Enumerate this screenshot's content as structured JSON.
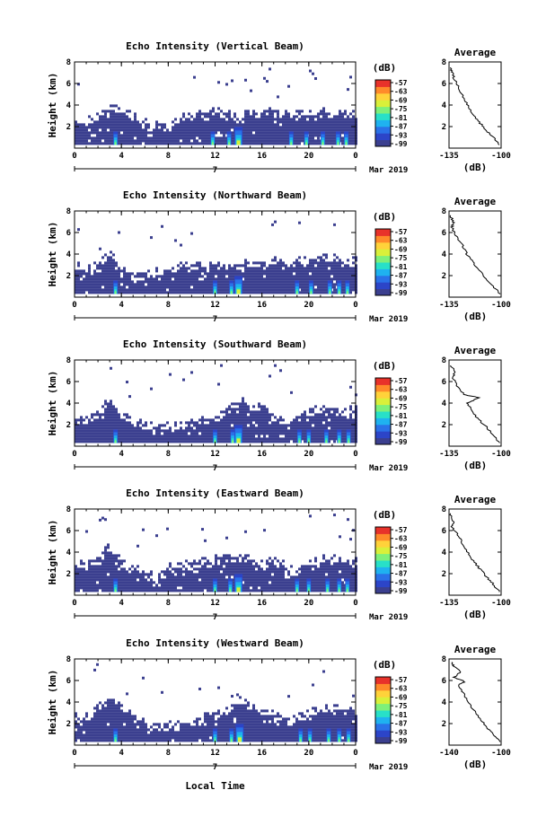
{
  "figure": {
    "xlabel_bottom": "Local Time",
    "date_label": "Mar 2019",
    "day_label": "7",
    "height_label": "Height (km)",
    "colorbar_title": "(dB)",
    "colorbar_ticks": [
      "-57",
      "-63",
      "-69",
      "-75",
      "-81",
      "-87",
      "-93",
      "-99"
    ],
    "colormap": [
      "#3b3f8f",
      "#2c45c8",
      "#2a72e8",
      "#1fb2f0",
      "#28e0c8",
      "#7ef07a",
      "#d9f03a",
      "#ffd23a",
      "#ff8a2a",
      "#e8322a"
    ]
  },
  "chart_data": [
    {
      "type": "heatmap",
      "title": "Echo Intensity (Vertical Beam)",
      "xlabel": "",
      "ylabel": "Height (km)",
      "xlim": [
        0,
        24
      ],
      "ylim": [
        0,
        8
      ],
      "x_ticks": [
        "0",
        "4",
        "8",
        "12",
        "16",
        "20",
        "0"
      ],
      "y_ticks": [
        "2",
        "4",
        "6",
        "8"
      ],
      "colorbar": {
        "label": "(dB)",
        "range": [
          -99,
          -57
        ]
      },
      "cloud_top_km": [
        2.3,
        2.6,
        2.9,
        3.8,
        3.9,
        3.0,
        2.6,
        2.2,
        2.3,
        2.9,
        2.9,
        3.3,
        3.4,
        3.5,
        3.1,
        3.3,
        3.4,
        3.5,
        3.4,
        3.3,
        3.3,
        3.5,
        3.2,
        3.4,
        3.5
      ],
      "bright_hours": [
        3.5,
        11.8,
        13.2,
        14.0,
        18.5,
        19.8,
        21.2,
        22.5,
        23.2
      ],
      "average": {
        "title": "Average",
        "xlabel": "(dB)",
        "x_ticks": [
          "-135",
          "-100"
        ],
        "xlim": [
          -135,
          -100
        ],
        "y_ticks": [
          "2",
          "4",
          "6",
          "8"
        ],
        "ylim": [
          0,
          8
        ],
        "profile": [
          [
            -101,
            0.3
          ],
          [
            -105,
            1.0
          ],
          [
            -110,
            1.6
          ],
          [
            -114,
            2.3
          ],
          [
            -118,
            3.0
          ],
          [
            -122,
            3.8
          ],
          [
            -125,
            4.6
          ],
          [
            -128,
            5.5
          ],
          [
            -131,
            6.3
          ],
          [
            -133,
            7.0
          ],
          [
            -134,
            7.5
          ]
        ]
      }
    },
    {
      "type": "heatmap",
      "title": "Echo Intensity (Northward Beam)",
      "xlabel": "",
      "ylabel": "Height (km)",
      "xlim": [
        0,
        24
      ],
      "ylim": [
        0,
        8
      ],
      "x_ticks": [
        "0",
        "4",
        "8",
        "12",
        "16",
        "20",
        "0"
      ],
      "y_ticks": [
        "2",
        "4",
        "6",
        "8"
      ],
      "colorbar": {
        "label": "(dB)",
        "range": [
          -99,
          -57
        ]
      },
      "cloud_top_km": [
        3.0,
        2.6,
        3.2,
        4.3,
        2.6,
        2.0,
        2.4,
        2.4,
        2.6,
        3.0,
        2.9,
        2.9,
        3.3,
        3.0,
        3.2,
        3.3,
        3.3,
        3.5,
        3.0,
        3.4,
        3.7,
        3.7,
        3.9,
        3.5,
        3.6
      ],
      "bright_hours": [
        3.5,
        12.0,
        13.4,
        14.0,
        19.0,
        20.2,
        21.8,
        22.6,
        23.3
      ],
      "average": {
        "title": "Average",
        "xlabel": "(dB)",
        "x_ticks": [
          "-135",
          "-100"
        ],
        "xlim": [
          -135,
          -100
        ],
        "y_ticks": [
          "2",
          "4",
          "6",
          "8"
        ],
        "ylim": [
          0,
          8
        ],
        "profile": [
          [
            -101,
            0.3
          ],
          [
            -105,
            1.0
          ],
          [
            -110,
            1.7
          ],
          [
            -115,
            2.5
          ],
          [
            -119,
            3.3
          ],
          [
            -123,
            4.0
          ],
          [
            -126,
            4.8
          ],
          [
            -130,
            5.6
          ],
          [
            -133,
            6.5
          ],
          [
            -132,
            7.0
          ],
          [
            -134,
            7.6
          ]
        ]
      }
    },
    {
      "type": "heatmap",
      "title": "Echo Intensity (Southward Beam)",
      "xlabel": "",
      "ylabel": "Height (km)",
      "xlim": [
        0,
        24
      ],
      "ylim": [
        0,
        8
      ],
      "x_ticks": [
        "0",
        "4",
        "8",
        "12",
        "16",
        "20",
        "0"
      ],
      "y_ticks": [
        "2",
        "4",
        "6",
        "8"
      ],
      "colorbar": {
        "label": "(dB)",
        "range": [
          -99,
          -57
        ]
      },
      "cloud_top_km": [
        2.9,
        2.5,
        3.4,
        4.6,
        3.0,
        2.6,
        2.0,
        1.8,
        2.0,
        2.1,
        2.3,
        2.6,
        2.9,
        3.5,
        4.6,
        3.9,
        3.5,
        3.0,
        2.3,
        2.9,
        3.3,
        3.5,
        3.6,
        3.4,
        3.5
      ],
      "bright_hours": [
        3.5,
        12.0,
        13.5,
        14.0,
        19.2,
        20.0,
        21.5,
        22.6,
        23.4
      ],
      "average": {
        "title": "Average",
        "xlabel": "(dB)",
        "x_ticks": [
          "-135",
          "-100"
        ],
        "xlim": [
          -135,
          -100
        ],
        "y_ticks": [
          "2",
          "4",
          "6",
          "8"
        ],
        "ylim": [
          0,
          8
        ],
        "profile": [
          [
            -101,
            0.3
          ],
          [
            -105,
            1.0
          ],
          [
            -110,
            1.8
          ],
          [
            -116,
            2.6
          ],
          [
            -120,
            3.4
          ],
          [
            -123,
            4.0
          ],
          [
            -115,
            4.5
          ],
          [
            -125,
            4.8
          ],
          [
            -130,
            5.6
          ],
          [
            -132,
            6.3
          ],
          [
            -131,
            6.9
          ],
          [
            -134,
            7.5
          ]
        ]
      }
    },
    {
      "type": "heatmap",
      "title": "Echo Intensity (Eastward Beam)",
      "xlabel": "",
      "ylabel": "Height (km)",
      "xlim": [
        0,
        24
      ],
      "ylim": [
        0,
        8
      ],
      "x_ticks": [
        "0",
        "4",
        "8",
        "12",
        "16",
        "20",
        "0"
      ],
      "y_ticks": [
        "2",
        "4",
        "6",
        "8"
      ],
      "colorbar": {
        "label": "(dB)",
        "range": [
          -99,
          -57
        ]
      },
      "cloud_top_km": [
        2.9,
        2.8,
        3.6,
        4.9,
        3.2,
        2.6,
        2.0,
        1.8,
        2.6,
        2.9,
        3.0,
        3.1,
        3.5,
        3.9,
        3.6,
        3.3,
        3.2,
        3.6,
        2.6,
        2.7,
        3.0,
        3.3,
        3.6,
        3.2,
        3.4
      ],
      "bright_hours": [
        3.5,
        12.0,
        13.3,
        14.0,
        19.0,
        20.0,
        21.6,
        22.6,
        23.3
      ],
      "average": {
        "title": "Average",
        "xlabel": "(dB)",
        "x_ticks": [
          "-135",
          "-100"
        ],
        "xlim": [
          -135,
          -100
        ],
        "y_ticks": [
          "2",
          "4",
          "6",
          "8"
        ],
        "ylim": [
          0,
          8
        ],
        "profile": [
          [
            -101,
            0.3
          ],
          [
            -105,
            1.0
          ],
          [
            -110,
            1.7
          ],
          [
            -114,
            2.4
          ],
          [
            -119,
            3.2
          ],
          [
            -122,
            3.9
          ],
          [
            -126,
            4.8
          ],
          [
            -129,
            5.6
          ],
          [
            -133,
            6.3
          ],
          [
            -132,
            6.8
          ],
          [
            -134,
            7.6
          ]
        ]
      }
    },
    {
      "type": "heatmap",
      "title": "Echo Intensity (Westward Beam)",
      "xlabel": "Local Time",
      "ylabel": "Height (km)",
      "xlim": [
        0,
        24
      ],
      "ylim": [
        0,
        8
      ],
      "x_ticks": [
        "0",
        "4",
        "8",
        "12",
        "16",
        "20",
        "0"
      ],
      "y_ticks": [
        "2",
        "4",
        "6",
        "8"
      ],
      "colorbar": {
        "label": "(dB)",
        "range": [
          -99,
          -57
        ]
      },
      "cloud_top_km": [
        2.7,
        2.7,
        3.6,
        4.6,
        3.6,
        2.6,
        2.0,
        1.9,
        2.1,
        2.3,
        2.4,
        2.7,
        2.9,
        3.6,
        4.6,
        3.8,
        3.3,
        2.9,
        2.5,
        2.7,
        3.2,
        3.6,
        3.6,
        3.3,
        3.5
      ],
      "bright_hours": [
        3.5,
        12.0,
        13.4,
        14.1,
        19.3,
        20.1,
        21.7,
        22.6,
        23.4
      ],
      "average": {
        "title": "Average",
        "xlabel": "(dB)",
        "x_ticks": [
          "-140",
          "-100"
        ],
        "xlim": [
          -140,
          -100
        ],
        "y_ticks": [
          "2",
          "4",
          "6",
          "8"
        ],
        "ylim": [
          0,
          8
        ],
        "profile": [
          [
            -101,
            0.3
          ],
          [
            -106,
            1.0
          ],
          [
            -112,
            1.8
          ],
          [
            -117,
            2.6
          ],
          [
            -122,
            3.4
          ],
          [
            -126,
            4.2
          ],
          [
            -130,
            5.0
          ],
          [
            -133,
            5.6
          ],
          [
            -128,
            5.9
          ],
          [
            -136,
            6.3
          ],
          [
            -131,
            6.8
          ],
          [
            -136,
            7.3
          ],
          [
            -138,
            7.7
          ]
        ]
      }
    }
  ]
}
